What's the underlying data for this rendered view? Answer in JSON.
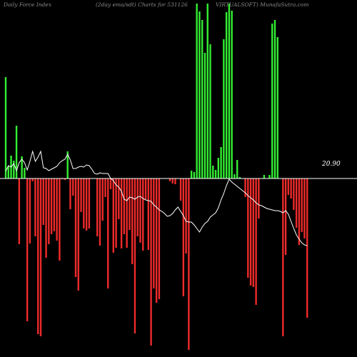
{
  "header": {
    "left": "Daily Force  Index",
    "center": "(2day ema/sdt) Charts for 531126",
    "right": "VIRTUALSOFT) MunafaSutra.com"
  },
  "last_value_label": "20.90",
  "colors": {
    "background": "#000000",
    "positive_bar": "#33ee33",
    "negative_bar": "#ee2a2a",
    "line": "#ffffff",
    "zero_line": "#ffffff"
  },
  "chart_data": {
    "type": "bar",
    "title": "",
    "xlabel": "",
    "ylabel": "",
    "ylim": [
      -250,
      245
    ],
    "grid": false,
    "legend": "none",
    "series": [
      {
        "values": [
          142,
          17,
          32,
          25,
          74,
          -92,
          31,
          15,
          -200,
          -91,
          -4,
          -81,
          -218,
          -221,
          -65,
          -111,
          -92,
          -78,
          -74,
          -87,
          -115,
          -1,
          -2,
          38,
          -43,
          -24,
          -138,
          -157,
          -47,
          -70,
          -73,
          -70,
          0,
          0,
          -81,
          -94,
          -59,
          -26,
          -154,
          -15,
          -104,
          -97,
          -57,
          -98,
          -78,
          -97,
          -72,
          -120,
          -217,
          -81,
          -90,
          -101,
          -29,
          -100,
          -234,
          -154,
          -174,
          -169,
          0,
          0,
          0,
          -4,
          -7,
          -8,
          0,
          -31,
          -165,
          -105,
          -240,
          11,
          9,
          245,
          234,
          222,
          176,
          245,
          188,
          18,
          12,
          29,
          44,
          195,
          233,
          245,
          235,
          6,
          26,
          2,
          0,
          -26,
          -139,
          -150,
          -152,
          -177,
          -56,
          0,
          5,
          0,
          5,
          217,
          222,
          198,
          0,
          -221,
          -107,
          -23,
          -28,
          -44,
          -69,
          -93,
          -75,
          -84,
          -195
        ],
        "x_start": 8
      },
      {
        "values": [
          10,
          18,
          16,
          21,
          11,
          22,
          27,
          22,
          12,
          24,
          38,
          24,
          30,
          38,
          15,
          14,
          11,
          13,
          15,
          17,
          22,
          25,
          27,
          34,
          26,
          14,
          14,
          16,
          17,
          16,
          19,
          18,
          13,
          7,
          6,
          8,
          7,
          7,
          7,
          0,
          -3,
          -9,
          -12,
          -18,
          -29,
          -31,
          -26,
          -27,
          -29,
          -26,
          -25,
          -28,
          -30,
          -31,
          -32,
          -37,
          -40,
          -44,
          -46,
          -49,
          -53,
          -52,
          -49,
          -44,
          -40,
          -46,
          -52,
          -60,
          -61,
          -61,
          -65,
          -70,
          -75,
          -68,
          -63,
          -60,
          -54,
          -51,
          -48,
          -41,
          -30,
          -21,
          -10,
          -1,
          -5,
          -8,
          -11,
          -14,
          -17,
          -20,
          -24,
          -27,
          -30,
          -34,
          -37,
          -38,
          -40,
          -42,
          -43,
          -44,
          -45,
          -45,
          -46,
          -48,
          -45,
          -50,
          -60,
          -70,
          -79,
          -85,
          -90,
          -93,
          -94
        ],
        "x_start": 8,
        "style": "line"
      }
    ]
  }
}
